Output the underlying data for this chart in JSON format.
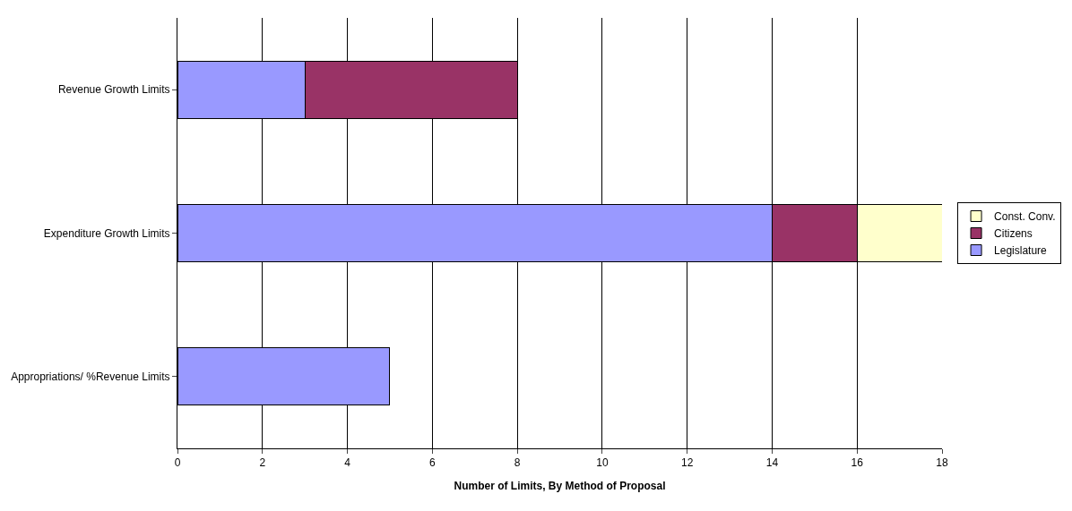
{
  "chart_data": {
    "type": "bar",
    "orientation": "horizontal",
    "stacked": true,
    "categories": [
      "Revenue Growth Limits",
      "Expenditure Growth Limits",
      "Appropriations/ %Revenue Limits"
    ],
    "series": [
      {
        "name": "Legislature",
        "color": "#9999ff",
        "values": [
          3,
          14,
          5
        ]
      },
      {
        "name": "Citizens",
        "color": "#993366",
        "values": [
          5,
          2,
          null
        ]
      },
      {
        "name": "Const. Conv.",
        "color": "#ffffcc",
        "values": [
          null,
          2,
          null
        ]
      }
    ],
    "xlabel": "Number of Limits, By Method of Proposal",
    "xlim": [
      0,
      18
    ],
    "xticks": [
      0,
      2,
      4,
      6,
      8,
      10,
      12,
      14,
      16,
      18
    ],
    "grid": "x",
    "legend": "right"
  }
}
